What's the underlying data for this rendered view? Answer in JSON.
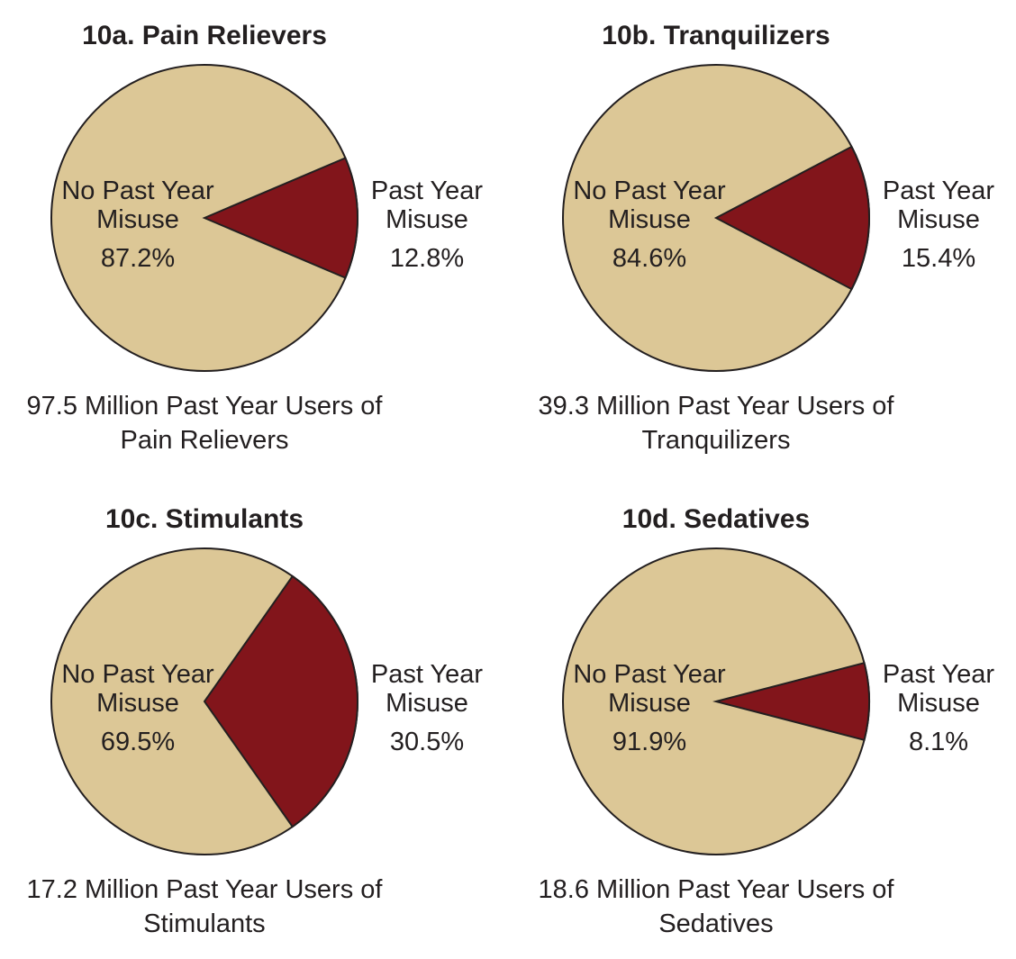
{
  "chart_data": [
    {
      "type": "pie",
      "title": "10a. Pain Relievers",
      "slices": [
        {
          "label": "No Past Year Misuse",
          "value": 87.2,
          "value_label": "87.2%",
          "color": "#dcc796"
        },
        {
          "label": "Past Year Misuse",
          "value": 12.8,
          "value_label": "12.8%",
          "color": "#82151b"
        }
      ],
      "caption": [
        "97.5 Million Past Year Users of",
        "Pain Relievers"
      ]
    },
    {
      "type": "pie",
      "title": "10b. Tranquilizers",
      "slices": [
        {
          "label": "No Past Year Misuse",
          "value": 84.6,
          "value_label": "84.6%",
          "color": "#dcc796"
        },
        {
          "label": "Past Year Misuse",
          "value": 15.4,
          "value_label": "15.4%",
          "color": "#82151b"
        }
      ],
      "caption": [
        "39.3 Million Past Year Users of",
        "Tranquilizers"
      ]
    },
    {
      "type": "pie",
      "title": "10c. Stimulants",
      "slices": [
        {
          "label": "No Past Year Misuse",
          "value": 69.5,
          "value_label": "69.5%",
          "color": "#dcc796"
        },
        {
          "label": "Past Year Misuse",
          "value": 30.5,
          "value_label": "30.5%",
          "color": "#82151b"
        }
      ],
      "caption": [
        "17.2 Million Past Year Users of",
        "Stimulants"
      ]
    },
    {
      "type": "pie",
      "title": "10d. Sedatives",
      "slices": [
        {
          "label": "No Past Year Misuse",
          "value": 91.9,
          "value_label": "91.9%",
          "color": "#dcc796"
        },
        {
          "label": "Past Year Misuse",
          "value": 8.1,
          "value_label": "8.1%",
          "color": "#82151b"
        }
      ],
      "caption": [
        "18.6 Million Past Year Users of",
        "Sedatives"
      ]
    }
  ]
}
